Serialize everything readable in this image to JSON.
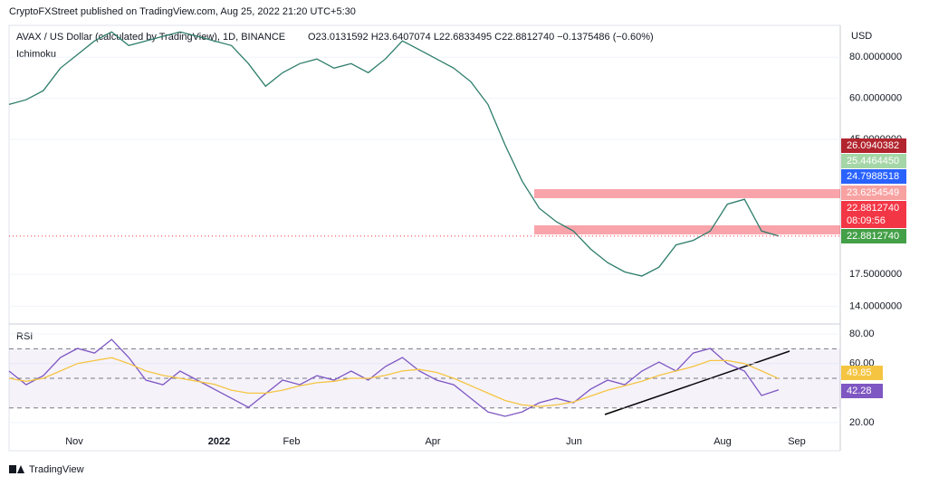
{
  "header": {
    "published": "CryptoFXStreet published on TradingView.com, Aug 25, 2022 21:20 UTC+5:30"
  },
  "chart_data": [
    {
      "type": "line",
      "title": "AVAX / US Dollar (calculated by TradingView), 1D, BINANCE",
      "ohlc": "O23.0131592 H23.6407074 L22.6833495 C22.8812740 −0.1375486 (−0.60%)",
      "indicator": "Ichimoku",
      "axis_label": "USD",
      "log_scale": true,
      "ylim": [
        12.6,
        100
      ],
      "yticks": [
        {
          "value": 80,
          "label": "80.0000000"
        },
        {
          "value": 60,
          "label": "60.0000000"
        },
        {
          "value": 45,
          "label": "45.0000000"
        },
        {
          "value": 17.5,
          "label": "17.5000000"
        },
        {
          "value": 14,
          "label": "14.0000000"
        }
      ],
      "series": [
        {
          "color": "#2e7d6b",
          "values": [
            57.5,
            59.4,
            63.3,
            74.1,
            81.5,
            89.7,
            95.5,
            86.8,
            89.7,
            92.6,
            95.5,
            92.6,
            89.7,
            86.8,
            76.5,
            65.3,
            71.8,
            76.5,
            79.0,
            74.1,
            76.5,
            71.8,
            79.0,
            89.7,
            84.2,
            79.0,
            74.1,
            67.4,
            57.5,
            43.3,
            33.6,
            27.8,
            25.3,
            23.7,
            20.9,
            19.0,
            17.8,
            17.3,
            18.4,
            21.5,
            22.2,
            23.7,
            28.6,
            29.6,
            23.7,
            22.881274
          ]
        }
      ],
      "price_tags": [
        {
          "value": 26.0940382,
          "label": "26.0940382",
          "color": "#b2252e"
        },
        {
          "value": 25.446445,
          "label": "25.4464450",
          "color": "#a5d6a7"
        },
        {
          "value": 24.7988518,
          "label": "24.7988518",
          "color": "#2962ff"
        },
        {
          "value": 23.6254549,
          "label": "23.6254549",
          "color": "#f7a1a1"
        },
        {
          "value": 22.881274,
          "label": "22.8812740",
          "timer": "08:09:56",
          "color": "#f23645"
        },
        {
          "value": 22.881274,
          "label": "22.8812740",
          "color": "#43a047"
        }
      ]
    },
    {
      "type": "line",
      "title": "RSI",
      "ylim": [
        13.3,
        84.3
      ],
      "yticks": [
        {
          "value": 80,
          "label": "80.00"
        },
        {
          "value": 60,
          "label": "60.00"
        },
        {
          "value": 20,
          "label": "20.00"
        }
      ],
      "hlines": [
        70,
        50,
        30
      ],
      "series": [
        {
          "color": "#7e57c2",
          "values": [
            54.9,
            45.7,
            51.8,
            64.1,
            70.2,
            67.1,
            76.3,
            64.1,
            48.8,
            45.7,
            54.9,
            48.8,
            42.6,
            36.5,
            30.4,
            39.6,
            48.8,
            45.7,
            51.8,
            48.8,
            54.9,
            48.8,
            58.0,
            64.1,
            54.9,
            48.8,
            45.7,
            36.5,
            27.3,
            24.3,
            27.3,
            33.5,
            36.5,
            33.5,
            42.6,
            48.8,
            45.7,
            54.9,
            61.0,
            54.9,
            67.1,
            70.2,
            60.0,
            54.9,
            38.4,
            42.28
          ]
        },
        {
          "color": "#f5c542",
          "values": [
            50,
            48,
            50,
            55,
            60,
            62,
            64,
            60,
            55,
            52,
            50,
            48,
            46,
            42,
            40,
            40,
            42,
            45,
            47,
            48,
            50,
            50,
            52,
            55,
            56,
            54,
            50,
            45,
            40,
            35,
            32,
            31,
            32,
            34,
            38,
            42,
            45,
            48,
            52,
            55,
            58,
            62,
            62,
            60,
            55,
            49.85
          ]
        }
      ],
      "value_tags": [
        {
          "value": 49.85,
          "label": "49.85",
          "color": "#f5c542"
        },
        {
          "value": 42.28,
          "label": "42.28",
          "color": "#7e57c2"
        }
      ]
    }
  ],
  "x_labels": [
    "Nov",
    "2022",
    "Feb",
    "Apr",
    "Jun",
    "Aug",
    "Sep"
  ],
  "footer": "TradingView"
}
